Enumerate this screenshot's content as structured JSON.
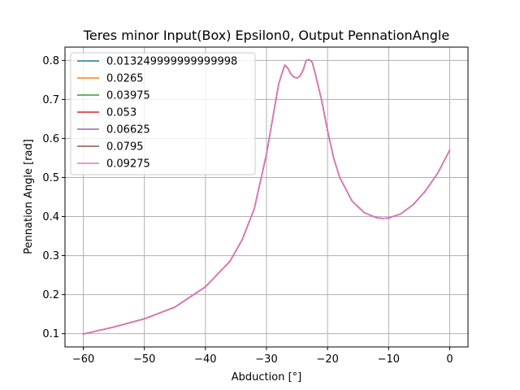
{
  "chart_data": {
    "type": "line",
    "title": "Teres minor Input(Box) Epsilon0, Output PennationAngle",
    "xlabel": "Abduction [°]",
    "ylabel": "Pennation Angle [rad]",
    "xlim": [
      -63.0,
      3.0
    ],
    "ylim": [
      0.066,
      0.834
    ],
    "xticks": [
      -60,
      -50,
      -40,
      -30,
      -20,
      -10,
      0
    ],
    "yticks": [
      0.1,
      0.2,
      0.3,
      0.4,
      0.5,
      0.6,
      0.7,
      0.8
    ],
    "xtick_labels": [
      "−60",
      "−50",
      "−40",
      "−30",
      "−20",
      "−10",
      "0"
    ],
    "ytick_labels": [
      "0.1",
      "0.2",
      "0.3",
      "0.4",
      "0.5",
      "0.6",
      "0.7",
      "0.8"
    ],
    "grid": true,
    "legend_position": "upper-left",
    "x": [
      -60,
      -55,
      -50,
      -45,
      -40,
      -36,
      -34,
      -32,
      -30,
      -29,
      -28,
      -27.5,
      -27,
      -26.5,
      -26,
      -25.5,
      -25,
      -24.5,
      -24,
      -23.5,
      -23,
      -22.5,
      -22,
      -21,
      -20,
      -19,
      -18,
      -16,
      -14,
      -12,
      -11,
      -10,
      -8,
      -6,
      -4,
      -2,
      0
    ],
    "series": [
      {
        "name": "0.013249999999999998",
        "color": "#1f77b4",
        "values": [
          0.099,
          0.117,
          0.138,
          0.168,
          0.22,
          0.285,
          0.34,
          0.42,
          0.56,
          0.65,
          0.74,
          0.765,
          0.788,
          0.78,
          0.765,
          0.757,
          0.755,
          0.76,
          0.775,
          0.8,
          0.802,
          0.795,
          0.765,
          0.7,
          0.62,
          0.55,
          0.5,
          0.44,
          0.41,
          0.397,
          0.395,
          0.396,
          0.407,
          0.43,
          0.465,
          0.51,
          0.57
        ]
      },
      {
        "name": "0.0265",
        "color": "#ff7f0e",
        "values": [
          0.099,
          0.117,
          0.138,
          0.168,
          0.22,
          0.285,
          0.34,
          0.42,
          0.56,
          0.65,
          0.74,
          0.765,
          0.788,
          0.78,
          0.765,
          0.757,
          0.755,
          0.76,
          0.775,
          0.8,
          0.802,
          0.795,
          0.765,
          0.7,
          0.62,
          0.55,
          0.5,
          0.44,
          0.41,
          0.397,
          0.395,
          0.396,
          0.407,
          0.43,
          0.465,
          0.51,
          0.57
        ]
      },
      {
        "name": "0.03975",
        "color": "#2ca02c",
        "values": [
          0.099,
          0.117,
          0.138,
          0.168,
          0.22,
          0.285,
          0.34,
          0.42,
          0.56,
          0.65,
          0.74,
          0.765,
          0.788,
          0.78,
          0.765,
          0.757,
          0.755,
          0.76,
          0.775,
          0.8,
          0.802,
          0.795,
          0.765,
          0.7,
          0.62,
          0.55,
          0.5,
          0.44,
          0.41,
          0.397,
          0.395,
          0.396,
          0.407,
          0.43,
          0.465,
          0.51,
          0.57
        ]
      },
      {
        "name": "0.053",
        "color": "#d62728",
        "values": [
          0.099,
          0.117,
          0.138,
          0.168,
          0.22,
          0.285,
          0.34,
          0.42,
          0.56,
          0.65,
          0.74,
          0.765,
          0.788,
          0.78,
          0.765,
          0.757,
          0.755,
          0.76,
          0.775,
          0.8,
          0.802,
          0.795,
          0.765,
          0.7,
          0.62,
          0.55,
          0.5,
          0.44,
          0.41,
          0.397,
          0.395,
          0.396,
          0.407,
          0.43,
          0.465,
          0.51,
          0.57
        ]
      },
      {
        "name": "0.06625",
        "color": "#9467bd",
        "values": [
          0.099,
          0.117,
          0.138,
          0.168,
          0.22,
          0.285,
          0.34,
          0.42,
          0.56,
          0.65,
          0.74,
          0.765,
          0.788,
          0.78,
          0.765,
          0.757,
          0.755,
          0.76,
          0.775,
          0.8,
          0.802,
          0.795,
          0.765,
          0.7,
          0.62,
          0.55,
          0.5,
          0.44,
          0.41,
          0.397,
          0.395,
          0.396,
          0.407,
          0.43,
          0.465,
          0.51,
          0.57
        ]
      },
      {
        "name": "0.0795",
        "color": "#8c564b",
        "values": [
          0.099,
          0.117,
          0.138,
          0.168,
          0.22,
          0.285,
          0.34,
          0.42,
          0.56,
          0.65,
          0.74,
          0.765,
          0.788,
          0.78,
          0.765,
          0.757,
          0.755,
          0.76,
          0.775,
          0.8,
          0.802,
          0.795,
          0.765,
          0.7,
          0.62,
          0.55,
          0.5,
          0.44,
          0.41,
          0.397,
          0.395,
          0.396,
          0.407,
          0.43,
          0.465,
          0.51,
          0.57
        ]
      },
      {
        "name": "0.09275",
        "color": "#e377c2",
        "values": [
          0.099,
          0.117,
          0.138,
          0.168,
          0.22,
          0.285,
          0.34,
          0.42,
          0.56,
          0.65,
          0.74,
          0.765,
          0.788,
          0.78,
          0.765,
          0.757,
          0.755,
          0.76,
          0.775,
          0.8,
          0.802,
          0.795,
          0.765,
          0.7,
          0.62,
          0.55,
          0.5,
          0.44,
          0.41,
          0.397,
          0.395,
          0.396,
          0.407,
          0.43,
          0.465,
          0.51,
          0.57
        ]
      }
    ]
  }
}
